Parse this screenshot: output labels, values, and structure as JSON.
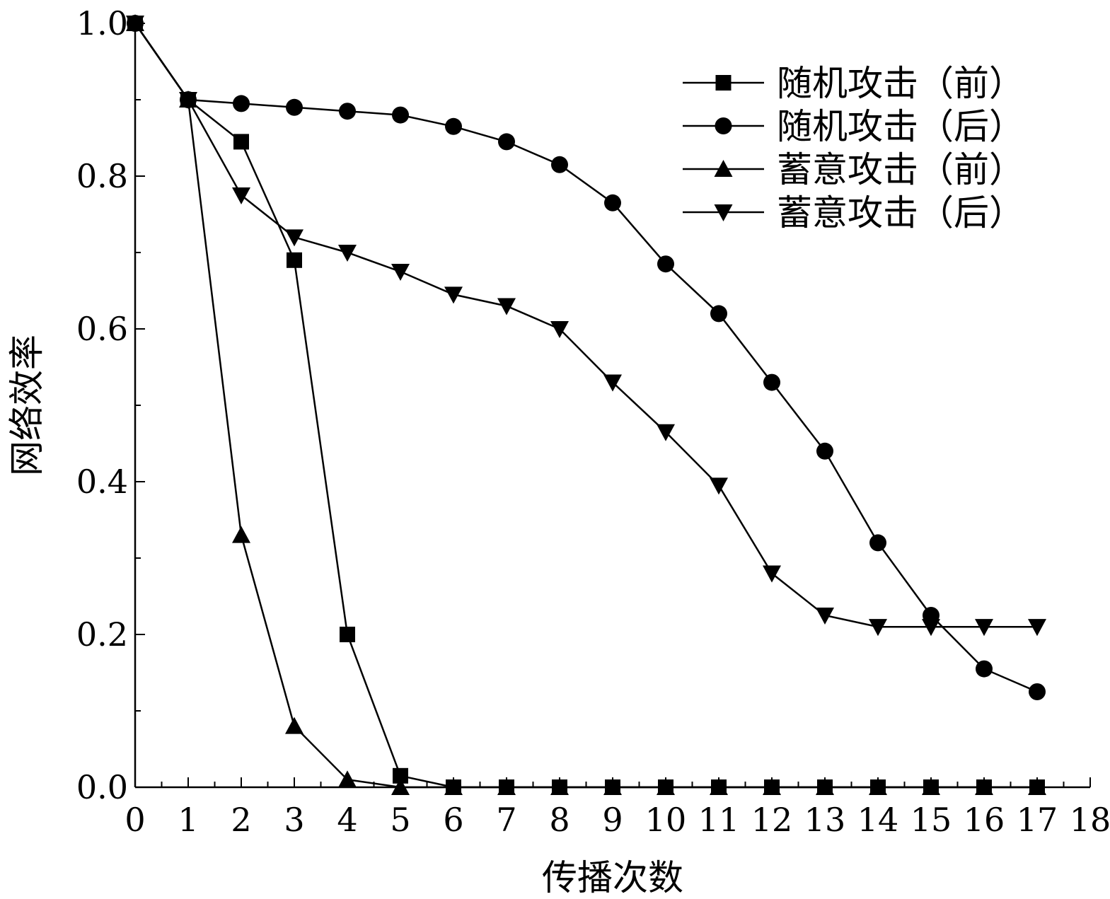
{
  "chart_data": {
    "type": "line",
    "xlabel": "传播次数",
    "ylabel": "网络效率",
    "xlim": [
      0,
      18
    ],
    "ylim": [
      0,
      1.0
    ],
    "x_ticks": [
      0,
      1,
      2,
      3,
      4,
      5,
      6,
      7,
      8,
      9,
      10,
      11,
      12,
      13,
      14,
      15,
      16,
      17,
      18
    ],
    "y_ticks": [
      "0.0",
      "0.2",
      "0.4",
      "0.6",
      "0.8",
      "1.0"
    ],
    "y_minor_ticks": [
      0.1,
      0.3,
      0.5,
      0.7,
      0.9
    ],
    "grid": false,
    "legend_position": "top-right",
    "series": [
      {
        "name": "随机攻击（前）",
        "marker": "square",
        "x": [
          0,
          1,
          2,
          3,
          4,
          5,
          6,
          7,
          8,
          9,
          10,
          11,
          12,
          13,
          14,
          15,
          16,
          17
        ],
        "y": [
          1.0,
          0.9,
          0.845,
          0.69,
          0.2,
          0.015,
          0.0,
          0.0,
          0.0,
          0.0,
          0.0,
          0.0,
          0.0,
          0.0,
          0.0,
          0.0,
          0.0,
          0.0
        ]
      },
      {
        "name": "随机攻击（后）",
        "marker": "circle",
        "x": [
          0,
          1,
          2,
          3,
          4,
          5,
          6,
          7,
          8,
          9,
          10,
          11,
          12,
          13,
          14,
          15,
          16,
          17
        ],
        "y": [
          1.0,
          0.9,
          0.895,
          0.89,
          0.885,
          0.88,
          0.865,
          0.845,
          0.815,
          0.765,
          0.685,
          0.62,
          0.53,
          0.44,
          0.32,
          0.225,
          0.155,
          0.125
        ]
      },
      {
        "name": "蓄意攻击（前）",
        "marker": "triangle-up",
        "x": [
          0,
          1,
          2,
          3,
          4,
          5,
          6,
          7,
          8,
          9,
          10,
          11,
          12,
          13,
          14,
          15,
          16,
          17
        ],
        "y": [
          1.0,
          0.9,
          0.33,
          0.08,
          0.01,
          0.0,
          0.0,
          0.0,
          0.0,
          0.0,
          0.0,
          0.0,
          0.0,
          0.0,
          0.0,
          0.0,
          0.0,
          0.0
        ]
      },
      {
        "name": "蓄意攻击（后）",
        "marker": "triangle-down",
        "x": [
          0,
          1,
          2,
          3,
          4,
          5,
          6,
          7,
          8,
          9,
          10,
          11,
          12,
          13,
          14,
          15,
          16,
          17
        ],
        "y": [
          1.0,
          0.9,
          0.775,
          0.72,
          0.7,
          0.675,
          0.645,
          0.63,
          0.6,
          0.53,
          0.465,
          0.395,
          0.28,
          0.225,
          0.21,
          0.21,
          0.21,
          0.21
        ]
      }
    ]
  }
}
